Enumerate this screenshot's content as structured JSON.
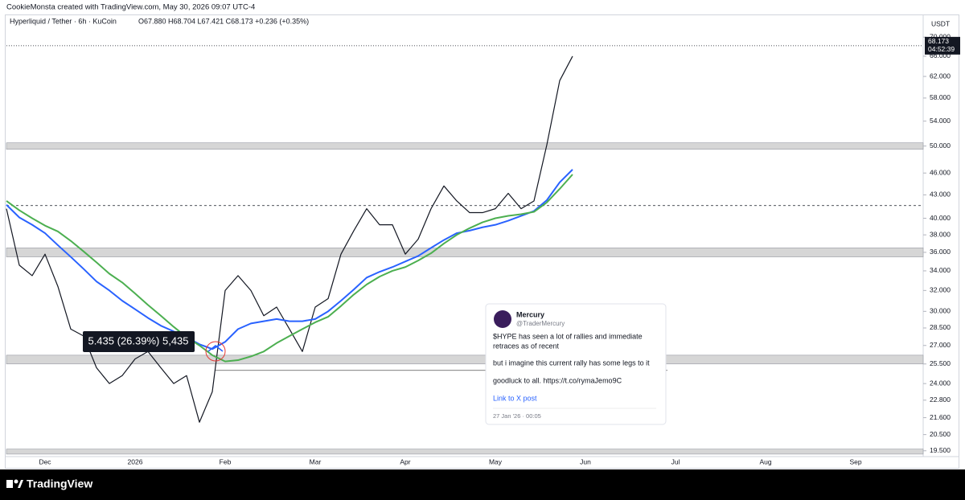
{
  "header": {
    "credit": "CookieMonsta created with TradingView.com, May 30, 2026 09:07 UTC-4",
    "symbol": "Hyperliquid / Tether · 6h · KuCoin",
    "ohlc": "O67.880 H68.704 L67.421 C68.173 +0.236 (+0.35%)",
    "currency": "USDT"
  },
  "chart_data": {
    "type": "line",
    "log_scale": true,
    "grid": false,
    "categories": [
      null,
      null,
      null,
      "Dec",
      null,
      null,
      null,
      null,
      null,
      null,
      "2026",
      null,
      null,
      null,
      null,
      null,
      null,
      "Feb",
      null,
      null,
      null,
      null,
      null,
      null,
      "Mar",
      null,
      null,
      null,
      null,
      null,
      null,
      "Apr",
      null,
      null,
      null,
      null,
      null,
      null,
      "May",
      null,
      null,
      null,
      null,
      null,
      null,
      "Jun",
      null,
      null,
      null,
      null,
      null,
      null,
      "Jul",
      null,
      null,
      null,
      null,
      null,
      null,
      "Aug",
      null,
      null,
      null,
      null,
      null,
      null,
      "Sep",
      null,
      null,
      null,
      null,
      null
    ],
    "series": [
      {
        "color": "#131722",
        "values": [
          41.2,
          34.6,
          33.5,
          35.8,
          32.4,
          28.4,
          27.8,
          25.2,
          24.0,
          24.6,
          25.9,
          26.5,
          25.2,
          24.0,
          24.6,
          21.3,
          23.4,
          32.0,
          33.5,
          32.0,
          29.6,
          30.4,
          28.4,
          26.5,
          30.4,
          31.2,
          35.8,
          38.5,
          41.2,
          39.2,
          39.2,
          35.8,
          37.5,
          41.2,
          44.2,
          42.2,
          40.7,
          40.7,
          41.2,
          43.2,
          41.2,
          42.2,
          50.2,
          61.2,
          66.0,
          null,
          null,
          null,
          null,
          null,
          null,
          null,
          null,
          null,
          null,
          null,
          null,
          null,
          null,
          null,
          null,
          null,
          null,
          null,
          null,
          null,
          null,
          null,
          null,
          null,
          null,
          null
        ]
      },
      {
        "color": "#2962ff",
        "values": [
          41.7,
          40.1,
          39.2,
          38.2,
          36.8,
          35.5,
          34.2,
          32.9,
          32.0,
          31.0,
          30.2,
          29.4,
          28.7,
          28.2,
          27.7,
          27.1,
          26.7,
          27.3,
          28.4,
          28.9,
          29.1,
          29.3,
          29.1,
          29.1,
          29.3,
          30.0,
          31.0,
          32.1,
          33.3,
          33.9,
          34.4,
          35.0,
          35.6,
          36.5,
          37.4,
          38.2,
          38.5,
          38.9,
          39.2,
          39.7,
          40.3,
          40.9,
          42.3,
          44.7,
          46.5,
          null,
          null,
          null,
          null,
          null,
          null,
          null,
          null,
          null,
          null,
          null,
          null,
          null,
          null,
          null,
          null,
          null,
          null,
          null,
          null,
          null,
          null,
          null,
          null,
          null,
          null,
          null
        ]
      },
      {
        "color": "#4caf50",
        "values": [
          42.2,
          41.0,
          40.0,
          39.1,
          38.4,
          37.3,
          36.1,
          34.9,
          33.7,
          32.8,
          31.7,
          30.6,
          29.6,
          28.6,
          27.7,
          27.0,
          26.2,
          25.7,
          25.8,
          26.1,
          26.5,
          27.2,
          27.8,
          28.4,
          29.0,
          29.5,
          30.5,
          31.6,
          32.6,
          33.4,
          34.0,
          34.4,
          35.1,
          35.9,
          37.0,
          38.0,
          38.8,
          39.5,
          40.0,
          40.3,
          40.5,
          40.8,
          42.0,
          43.8,
          45.8,
          null,
          null,
          null,
          null,
          null,
          null,
          null,
          null,
          null,
          null,
          null,
          null,
          null,
          null,
          null,
          null,
          null,
          null,
          null,
          null,
          null,
          null,
          null,
          null,
          null,
          null,
          null
        ]
      }
    ],
    "ylim": [
      19.2,
      71.8
    ],
    "yticks": [
      {
        "value": 70,
        "label": "70.000"
      },
      {
        "value": 66,
        "label": "66.000"
      },
      {
        "value": 62,
        "label": "62.000"
      },
      {
        "value": 58,
        "label": "58.000"
      },
      {
        "value": 54,
        "label": "54.000"
      },
      {
        "value": 50,
        "label": "50.000"
      },
      {
        "value": 46,
        "label": "46.000"
      },
      {
        "value": 43,
        "label": "43.000"
      },
      {
        "value": 40,
        "label": "40.000"
      },
      {
        "value": 38,
        "label": "38.000"
      },
      {
        "value": 36,
        "label": "36.000"
      },
      {
        "value": 34,
        "label": "34.000"
      },
      {
        "value": 32,
        "label": "32.000"
      },
      {
        "value": 30,
        "label": "30.000"
      },
      {
        "value": 28.5,
        "label": "28.500"
      },
      {
        "value": 27,
        "label": "27.000"
      },
      {
        "value": 25.5,
        "label": "25.500"
      },
      {
        "value": 24,
        "label": "24.000"
      },
      {
        "value": 22.8,
        "label": "22.800"
      },
      {
        "value": 21.6,
        "label": "21.600"
      },
      {
        "value": 20.5,
        "label": "20.500"
      },
      {
        "value": 19.5,
        "label": "19.500"
      }
    ],
    "zones": [
      [
        49.5,
        50.5
      ],
      [
        35.5,
        36.5
      ],
      [
        25.5,
        26.2
      ],
      [
        19.3,
        19.6
      ]
    ],
    "level": 41.6,
    "ray": 25.0,
    "last_price": 68.173,
    "countdown": "04:52:39",
    "range_label": "5.435 (26.39%) 5,435"
  },
  "tweet": {
    "name": "Mercury",
    "handle": "@TraderMercury",
    "lines": [
      "$HYPE has seen a lot of rallies and immediate",
      "retraces as of recent",
      "but i imagine this current rally has some legs to it",
      "goodluck to all. https://t.co/rymaJemo9C"
    ],
    "link": "Link to X post",
    "date": "27 Jan '26 · 00:05"
  },
  "footer": {
    "brand": "TradingView"
  }
}
